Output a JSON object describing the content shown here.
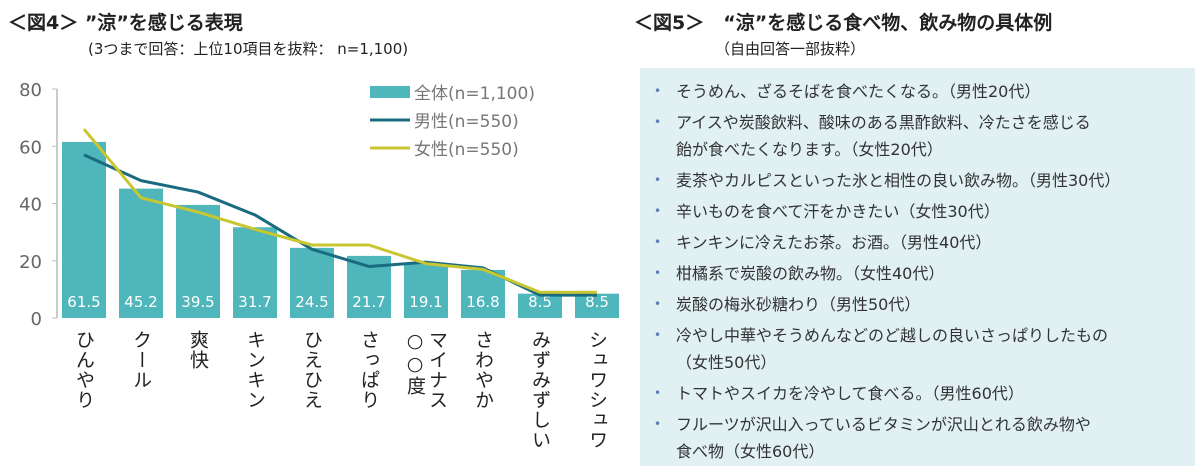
{
  "fig4": {
    "title": "＜図4＞ ”涼”を感じる表現",
    "subtitle": "(3つまで回答：上位10項目を抜粋： n=1,100)"
  },
  "chart_data": {
    "type": "bar",
    "categories": [
      "ひんやり",
      "クール",
      "爽快",
      "キンキン",
      "ひえひえ",
      "さっぱり",
      "マイナス○○度",
      "さわやか",
      "みずみずしい",
      "シュワシュワ"
    ],
    "category_labels": [
      [
        "ひんやり"
      ],
      [
        "クール"
      ],
      [
        "爽快"
      ],
      [
        "キンキン"
      ],
      [
        "ひえひえ"
      ],
      [
        "さっぱり"
      ],
      [
        "○○度",
        "マイナス"
      ],
      [
        "さわやか"
      ],
      [
        "みずみずしい"
      ],
      [
        "シュワシュワ"
      ]
    ],
    "series": [
      {
        "name": "全体(n=1,100)",
        "type": "bar",
        "color": "#4fb6bb",
        "values": [
          61.5,
          45.2,
          39.5,
          31.7,
          24.5,
          21.7,
          19.1,
          16.8,
          8.5,
          8.5
        ],
        "labels": [
          "61.5",
          "45.2",
          "39.5",
          "31.7",
          "24.5",
          "21.7",
          "19.1",
          "16.8",
          "8.5",
          "8.5"
        ]
      },
      {
        "name": "男性(n=550)",
        "type": "line",
        "color": "#1b6b80",
        "values": [
          57,
          48,
          44,
          36,
          24,
          18,
          19.5,
          17.5,
          8,
          8
        ]
      },
      {
        "name": "女性(n=550)",
        "type": "line",
        "color": "#c9c731",
        "values": [
          66,
          42,
          37,
          31,
          25.5,
          25.5,
          19,
          17,
          9,
          9
        ]
      }
    ],
    "yticks": [
      "0",
      "20",
      "40",
      "60",
      "80"
    ],
    "ylim": [
      0,
      80
    ],
    "legend": "top-right",
    "grid": false
  },
  "fig5": {
    "title": "＜図5＞　“涼”を感じる食べ物、飲み物の具体例",
    "subtitle": "（自由回答一部抜粋）",
    "bullet": "•",
    "items": [
      {
        "lines": [
          "そうめん、ざるそばを食べたくなる。（男性20代）"
        ]
      },
      {
        "lines": [
          "アイスや炭酸飲料、酸味のある黒酢飲料、冷たさを感じる",
          "飴が食べたくなります。（女性20代）"
        ]
      },
      {
        "lines": [
          "麦茶やカルピスといった氷と相性の良い飲み物。（男性30代）"
        ]
      },
      {
        "lines": [
          "辛いものを食べて汗をかきたい（女性30代）"
        ]
      },
      {
        "lines": [
          "キンキンに冷えたお茶。お酒。（男性40代）"
        ]
      },
      {
        "lines": [
          "柑橘系で炭酸の飲み物。（女性40代）"
        ]
      },
      {
        "lines": [
          "炭酸の梅氷砂糖わり（男性50代）"
        ]
      },
      {
        "lines": [
          "冷やし中華やそうめんなどのど越しの良いさっぱりしたもの",
          "（女性50代）"
        ]
      },
      {
        "lines": [
          "トマトやスイカを冷やして食べる。（男性60代）"
        ]
      },
      {
        "lines": [
          "フルーツが沢山入っているビタミンが沢山とれる飲み物や",
          "食べ物（女性60代）"
        ]
      }
    ]
  }
}
